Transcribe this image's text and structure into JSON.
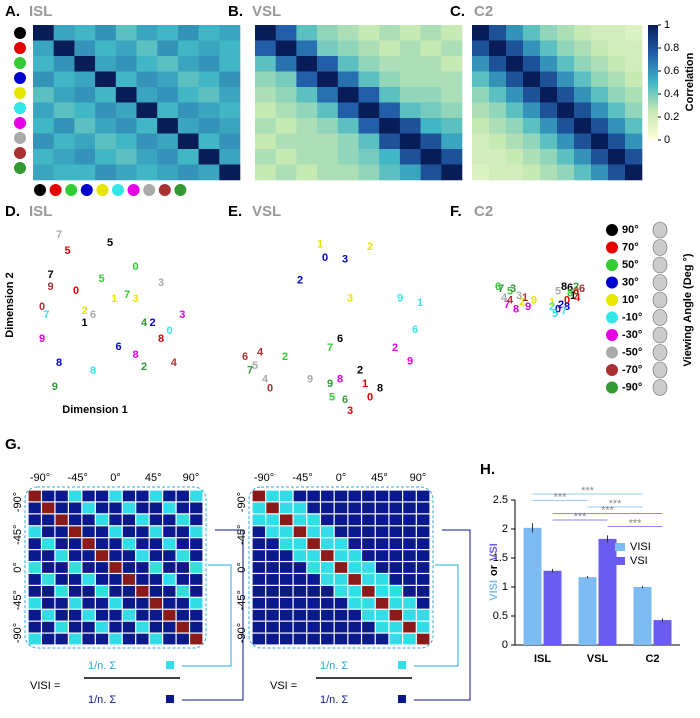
{
  "chart_data": [
    {
      "type": "heatmap",
      "panel": "A.",
      "title": "ISL",
      "values": [
        [
          1,
          0.55,
          0.5,
          0.6,
          0.45,
          0.55,
          0.5,
          0.6,
          0.5,
          0.55
        ],
        [
          0.55,
          1,
          0.6,
          0.5,
          0.55,
          0.45,
          0.6,
          0.5,
          0.55,
          0.5
        ],
        [
          0.5,
          0.6,
          1,
          0.55,
          0.6,
          0.5,
          0.45,
          0.55,
          0.6,
          0.5
        ],
        [
          0.6,
          0.5,
          0.55,
          1,
          0.5,
          0.6,
          0.55,
          0.45,
          0.5,
          0.6
        ],
        [
          0.45,
          0.55,
          0.6,
          0.5,
          1,
          0.55,
          0.6,
          0.5,
          0.45,
          0.55
        ],
        [
          0.55,
          0.45,
          0.5,
          0.6,
          0.55,
          1,
          0.5,
          0.6,
          0.55,
          0.5
        ],
        [
          0.5,
          0.6,
          0.45,
          0.55,
          0.6,
          0.5,
          1,
          0.55,
          0.6,
          0.55
        ],
        [
          0.6,
          0.5,
          0.55,
          0.45,
          0.5,
          0.6,
          0.55,
          1,
          0.5,
          0.6
        ],
        [
          0.5,
          0.55,
          0.6,
          0.5,
          0.45,
          0.55,
          0.6,
          0.5,
          1,
          0.55
        ],
        [
          0.55,
          0.5,
          0.5,
          0.6,
          0.55,
          0.5,
          0.55,
          0.6,
          0.55,
          1
        ]
      ]
    },
    {
      "type": "heatmap",
      "panel": "B.",
      "title": "VSL",
      "values": [
        [
          1,
          0.75,
          0.45,
          0.35,
          0.3,
          0.25,
          0.3,
          0.25,
          0.3,
          0.25
        ],
        [
          0.75,
          1,
          0.7,
          0.4,
          0.35,
          0.3,
          0.25,
          0.3,
          0.25,
          0.3
        ],
        [
          0.45,
          0.7,
          1,
          0.75,
          0.45,
          0.35,
          0.3,
          0.3,
          0.3,
          0.25
        ],
        [
          0.35,
          0.4,
          0.75,
          1,
          0.7,
          0.45,
          0.35,
          0.3,
          0.3,
          0.3
        ],
        [
          0.3,
          0.35,
          0.45,
          0.7,
          1,
          0.75,
          0.45,
          0.35,
          0.35,
          0.3
        ],
        [
          0.25,
          0.3,
          0.35,
          0.45,
          0.75,
          1,
          0.75,
          0.45,
          0.4,
          0.35
        ],
        [
          0.3,
          0.25,
          0.3,
          0.35,
          0.45,
          0.75,
          1,
          0.8,
          0.5,
          0.45
        ],
        [
          0.25,
          0.3,
          0.3,
          0.3,
          0.35,
          0.45,
          0.8,
          1,
          0.8,
          0.55
        ],
        [
          0.3,
          0.25,
          0.3,
          0.3,
          0.35,
          0.4,
          0.5,
          0.8,
          1,
          0.8
        ],
        [
          0.25,
          0.3,
          0.25,
          0.3,
          0.3,
          0.35,
          0.45,
          0.55,
          0.8,
          1
        ]
      ]
    },
    {
      "type": "heatmap",
      "panel": "C.",
      "title": "C2",
      "colorbar_label": "Correlation",
      "zlim": [
        0,
        1
      ],
      "zticks": [
        0,
        0.2,
        0.4,
        0.6,
        0.8,
        1
      ],
      "values": [
        [
          1,
          0.8,
          0.6,
          0.45,
          0.35,
          0.3,
          0.25,
          0.2,
          0.2,
          0.15
        ],
        [
          0.8,
          1,
          0.8,
          0.6,
          0.45,
          0.35,
          0.3,
          0.25,
          0.2,
          0.2
        ],
        [
          0.6,
          0.8,
          1,
          0.8,
          0.6,
          0.45,
          0.35,
          0.3,
          0.25,
          0.2
        ],
        [
          0.45,
          0.6,
          0.8,
          1,
          0.8,
          0.6,
          0.45,
          0.35,
          0.3,
          0.25
        ],
        [
          0.35,
          0.45,
          0.6,
          0.8,
          1,
          0.8,
          0.6,
          0.45,
          0.35,
          0.3
        ],
        [
          0.3,
          0.35,
          0.45,
          0.6,
          0.8,
          1,
          0.8,
          0.6,
          0.45,
          0.35
        ],
        [
          0.25,
          0.3,
          0.35,
          0.45,
          0.6,
          0.8,
          1,
          0.8,
          0.6,
          0.45
        ],
        [
          0.2,
          0.25,
          0.3,
          0.35,
          0.45,
          0.6,
          0.8,
          1,
          0.8,
          0.6
        ],
        [
          0.2,
          0.2,
          0.25,
          0.3,
          0.35,
          0.45,
          0.6,
          0.8,
          1,
          0.8
        ],
        [
          0.15,
          0.2,
          0.2,
          0.25,
          0.3,
          0.35,
          0.45,
          0.6,
          0.8,
          1
        ]
      ]
    },
    {
      "type": "scatter",
      "panel": "D.",
      "title": "ISL",
      "xlabel": "Dimension 1",
      "ylabel": "Dimension 2",
      "xlim": [
        -1,
        1
      ],
      "ylim": [
        -1,
        1
      ],
      "series": [
        {
          "color": "#000000",
          "labels": [
            "5",
            "7",
            "1"
          ],
          "x": [
            0.0,
            -0.7,
            -0.3
          ],
          "y": [
            0.9,
            0.5,
            -0.1
          ]
        },
        {
          "color": "#e60000",
          "labels": [
            "5",
            "0",
            "8"
          ],
          "x": [
            -0.5,
            -0.4,
            0.6
          ],
          "y": [
            0.8,
            0.3,
            -0.3
          ]
        },
        {
          "color": "#33cc33",
          "labels": [
            "0",
            "5",
            "7"
          ],
          "x": [
            0.3,
            -0.1,
            0.2
          ],
          "y": [
            0.6,
            0.45,
            0.25
          ]
        },
        {
          "color": "#0000cc",
          "labels": [
            "6",
            "8",
            "2"
          ],
          "x": [
            0.1,
            -0.6,
            0.5
          ],
          "y": [
            -0.4,
            -0.6,
            -0.1
          ]
        },
        {
          "color": "#e6e600",
          "labels": [
            "1",
            "2",
            "3"
          ],
          "x": [
            0.05,
            -0.3,
            0.3
          ],
          "y": [
            0.2,
            0.05,
            0.2
          ]
        },
        {
          "color": "#33e6e6",
          "labels": [
            "7",
            "0",
            "8"
          ],
          "x": [
            -0.75,
            0.7,
            -0.2
          ],
          "y": [
            0.0,
            -0.2,
            -0.7
          ]
        },
        {
          "color": "#e600e6",
          "labels": [
            "9",
            "8",
            "3"
          ],
          "x": [
            -0.8,
            0.3,
            0.85
          ],
          "y": [
            -0.3,
            -0.5,
            0.0
          ]
        },
        {
          "color": "#aaaaaa",
          "labels": [
            "7",
            "6",
            "3"
          ],
          "x": [
            -0.6,
            -0.2,
            0.6
          ],
          "y": [
            1.0,
            0.0,
            0.4
          ]
        },
        {
          "color": "#a83232",
          "labels": [
            "9",
            "0",
            "4"
          ],
          "x": [
            -0.7,
            -0.8,
            0.75
          ],
          "y": [
            0.35,
            0.1,
            -0.6
          ]
        },
        {
          "color": "#339933",
          "labels": [
            "9",
            "4",
            "2"
          ],
          "x": [
            -0.65,
            0.4,
            0.4
          ],
          "y": [
            -0.9,
            -0.1,
            -0.65
          ]
        }
      ]
    },
    {
      "type": "scatter",
      "panel": "E.",
      "title": "VSL",
      "xlim": [
        -1,
        1
      ],
      "ylim": [
        -1,
        1
      ],
      "series": [
        {
          "color": "#000000",
          "labels": [
            "6",
            "2",
            "8"
          ],
          "x": [
            0.0,
            0.2,
            0.4
          ],
          "y": [
            -0.1,
            -0.45,
            -0.65
          ]
        },
        {
          "color": "#e60000",
          "labels": [
            "3",
            "0",
            "1"
          ],
          "x": [
            0.1,
            0.3,
            0.25
          ],
          "y": [
            -0.9,
            -0.75,
            -0.6
          ]
        },
        {
          "color": "#33cc33",
          "labels": [
            "7",
            "2",
            "5"
          ],
          "x": [
            -0.1,
            -0.55,
            -0.08
          ],
          "y": [
            -0.2,
            -0.3,
            -0.75
          ]
        },
        {
          "color": "#0000cc",
          "labels": [
            "0",
            "2",
            "3"
          ],
          "x": [
            -0.15,
            -0.4,
            0.05
          ],
          "y": [
            0.8,
            0.55,
            0.78
          ]
        },
        {
          "color": "#e6e600",
          "labels": [
            "1",
            "2",
            "3"
          ],
          "x": [
            -0.2,
            0.3,
            0.1
          ],
          "y": [
            0.95,
            0.92,
            0.35
          ]
        },
        {
          "color": "#33e6e6",
          "labels": [
            "9",
            "1",
            "6"
          ],
          "x": [
            0.6,
            0.8,
            0.75
          ],
          "y": [
            0.35,
            0.3,
            0.0
          ]
        },
        {
          "color": "#e600e6",
          "labels": [
            "9",
            "8",
            "2"
          ],
          "x": [
            0.7,
            0.0,
            0.55
          ],
          "y": [
            -0.35,
            -0.55,
            -0.2
          ]
        },
        {
          "color": "#aaaaaa",
          "labels": [
            "9",
            "5",
            "4"
          ],
          "x": [
            -0.3,
            -0.85,
            -0.75
          ],
          "y": [
            -0.55,
            -0.4,
            -0.55
          ]
        },
        {
          "color": "#a83232",
          "labels": [
            "6",
            "4",
            "0"
          ],
          "x": [
            -0.95,
            -0.8,
            -0.7
          ],
          "y": [
            -0.3,
            -0.25,
            -0.65
          ]
        },
        {
          "color": "#339933",
          "labels": [
            "9",
            "6",
            "7"
          ],
          "x": [
            -0.1,
            0.05,
            -0.9
          ],
          "y": [
            -0.6,
            -0.78,
            -0.45
          ]
        }
      ]
    },
    {
      "type": "scatter",
      "panel": "F.",
      "title": "C2",
      "xlim": [
        -1,
        1
      ],
      "ylim": [
        -1,
        1
      ],
      "series": [
        {
          "color": "#000000",
          "labels": [
            "8",
            "6",
            "1"
          ],
          "x": [
            0.4,
            0.5,
            0.55
          ],
          "y": [
            0.4,
            0.38,
            0.2
          ]
        },
        {
          "color": "#e60000",
          "labels": [
            "6",
            "0",
            "4"
          ],
          "x": [
            0.6,
            0.45,
            0.62
          ],
          "y": [
            0.3,
            0.1,
            0.15
          ]
        },
        {
          "color": "#33cc33",
          "labels": [
            "6",
            "5",
            "8"
          ],
          "x": [
            -0.7,
            -0.5,
            0.5
          ],
          "y": [
            0.4,
            0.3,
            0.25
          ]
        },
        {
          "color": "#0000cc",
          "labels": [
            "0",
            "2",
            "8"
          ],
          "x": [
            0.3,
            0.35,
            0.45
          ],
          "y": [
            -0.1,
            0.0,
            -0.05
          ]
        },
        {
          "color": "#e6e600",
          "labels": [
            "2",
            "1",
            "9"
          ],
          "x": [
            -0.3,
            0.2,
            -0.1
          ],
          "y": [
            0.05,
            0.05,
            0.1
          ]
        },
        {
          "color": "#33e6e6",
          "labels": [
            "5",
            "7",
            "2"
          ],
          "x": [
            0.25,
            0.4,
            0.2
          ],
          "y": [
            -0.2,
            -0.15,
            -0.05
          ]
        },
        {
          "color": "#e600e6",
          "labels": [
            "8",
            "9",
            "7"
          ],
          "x": [
            -0.4,
            -0.2,
            -0.55
          ],
          "y": [
            -0.1,
            -0.05,
            0.0
          ]
        },
        {
          "color": "#aaaaaa",
          "labels": [
            "4",
            "3",
            "5"
          ],
          "x": [
            -0.6,
            -0.35,
            0.3
          ],
          "y": [
            0.15,
            0.2,
            0.3
          ]
        },
        {
          "color": "#a83232",
          "labels": [
            "4",
            "6",
            "1"
          ],
          "x": [
            -0.5,
            0.7,
            -0.25
          ],
          "y": [
            0.1,
            0.35,
            0.15
          ]
        },
        {
          "color": "#339933",
          "labels": [
            "7",
            "3",
            "2"
          ],
          "x": [
            -0.65,
            -0.45,
            0.6
          ],
          "y": [
            0.35,
            0.35,
            0.4
          ]
        }
      ]
    },
    {
      "type": "bar",
      "panel": "H.",
      "categories": [
        "ISL",
        "VSL",
        "C2"
      ],
      "ylim": [
        0,
        2.5
      ],
      "yticks": [
        0,
        0.5,
        1,
        1.5,
        2,
        2.5
      ],
      "ylabel_joiner": "or",
      "series": [
        {
          "name": "VISI",
          "color": "#7cbcf2",
          "values": [
            2.02,
            1.17,
            1.0
          ],
          "errors": [
            0.08,
            0.02,
            0.02
          ]
        },
        {
          "name": "VSI",
          "color": "#6b5cf0",
          "values": [
            1.28,
            1.83,
            0.43
          ],
          "errors": [
            0.03,
            0.06,
            0.03
          ]
        }
      ],
      "significance": [
        {
          "label": "***",
          "series": 0,
          "from": 0,
          "to": 2
        },
        {
          "label": "***",
          "series": 0,
          "from": 0,
          "to": 1
        },
        {
          "label": "***",
          "series": 0,
          "from": 1,
          "to": 2
        },
        {
          "label": "***",
          "series": 1,
          "from": 0,
          "to": 2
        },
        {
          "label": "***",
          "series": 1,
          "from": 0,
          "to": 1
        },
        {
          "label": "***",
          "series": 1,
          "from": 1,
          "to": 2
        }
      ]
    }
  ],
  "angle_legend": {
    "title": "Viewing Angle (Deg °)",
    "items": [
      {
        "label": "90°",
        "color": "#000000"
      },
      {
        "label": "70°",
        "color": "#e60000"
      },
      {
        "label": "50°",
        "color": "#33cc33"
      },
      {
        "label": "30°",
        "color": "#0000cc"
      },
      {
        "label": "10°",
        "color": "#e6e600"
      },
      {
        "label": "-10°",
        "color": "#33e6e6"
      },
      {
        "label": "-30°",
        "color": "#e600e6"
      },
      {
        "label": "-50°",
        "color": "#aaaaaa"
      },
      {
        "label": "-70°",
        "color": "#a83232"
      },
      {
        "label": "-90°",
        "color": "#339933"
      }
    ]
  },
  "diagram_g": {
    "panel": "G.",
    "top_ticks": [
      "-90°",
      "-45°",
      "0°",
      "45°",
      "90°"
    ],
    "left_ticks": [
      "-90°",
      "-45°",
      "0°",
      "-45°",
      "-90°"
    ],
    "visi": {
      "lhs": "VISI =",
      "numerator": "1/n. Σ",
      "denominator": "1/n. Σ"
    },
    "vsi": {
      "lhs": "VSI =",
      "numerator": "1/n. Σ",
      "denominator": "1/n. Σ"
    }
  }
}
